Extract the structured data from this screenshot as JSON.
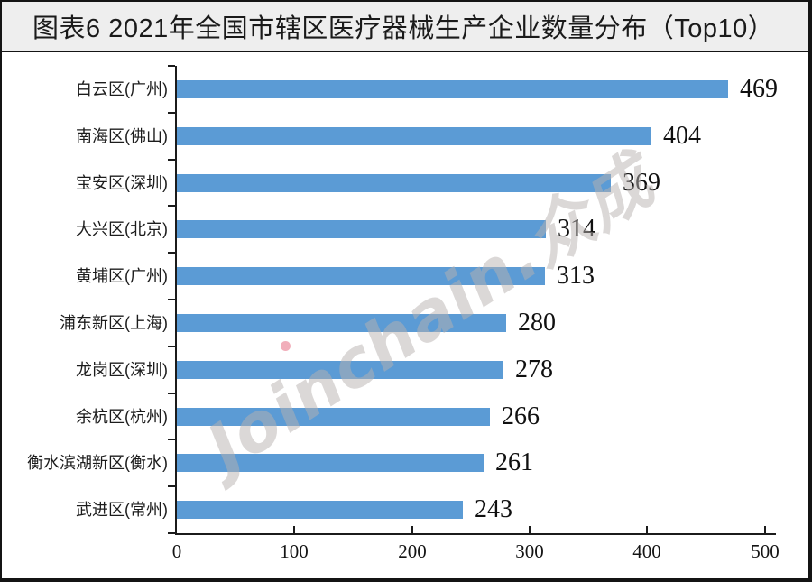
{
  "title": "图表6  2021年全国市辖区医疗器械生产企业数量分布（Top10）",
  "watermark": {
    "latin": "Joinchain",
    "separator": ".",
    "cjk": "众成"
  },
  "colors": {
    "bar": "#5B9BD5",
    "axis": "#1b1b1b",
    "title_bg": "#eeeeee",
    "title_text": "#1a1a1a",
    "frame_border": "#141414",
    "chart_bg": "#ffffff"
  },
  "chart_data": {
    "type": "bar",
    "orientation": "horizontal",
    "title": "图表6  2021年全国市辖区医疗器械生产企业数量分布（Top10）",
    "categories": [
      "白云区(广州)",
      "南海区(佛山)",
      "宝安区(深圳)",
      "大兴区(北京)",
      "黄埔区(广州)",
      "浦东新区(上海)",
      "龙岗区(深圳)",
      "余杭区(杭州)",
      "衡水滨湖新区(衡水)",
      "武进区(常州)"
    ],
    "values": [
      469,
      404,
      369,
      314,
      313,
      280,
      278,
      266,
      261,
      243
    ],
    "value_labels": true,
    "xlabel": "",
    "ylabel": "",
    "xlim": [
      0,
      500
    ],
    "xticks": [
      0,
      100,
      200,
      300,
      400,
      500
    ],
    "grid": false,
    "legend": false
  }
}
